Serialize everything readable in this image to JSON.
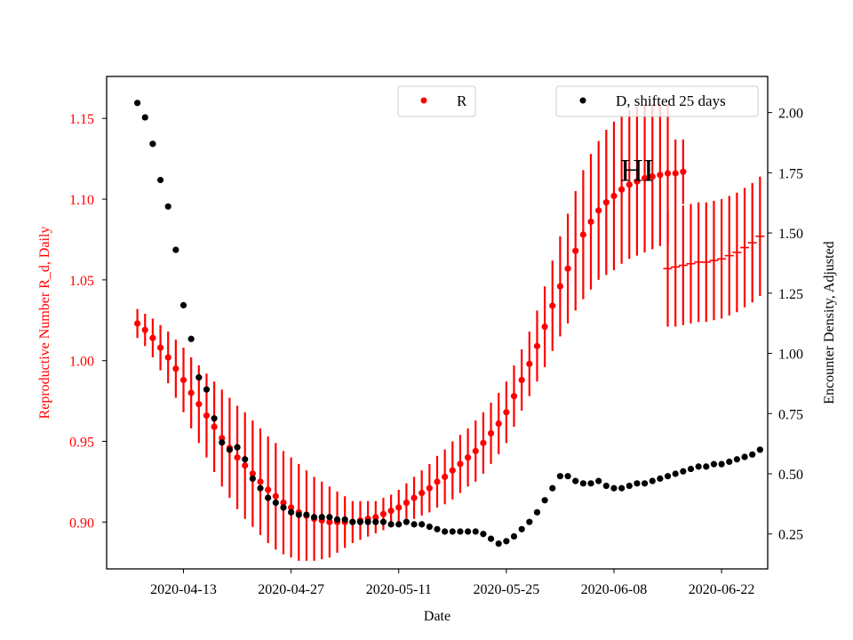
{
  "chart_data": {
    "type": "scatter",
    "xlabel": "Date",
    "ylabel_left": "Reproductive Number R_d, Daily",
    "ylabel_right": "Encounter Density, Adjusted",
    "x_tick_labels": [
      "2020-04-13",
      "2020-04-27",
      "2020-05-11",
      "2020-05-25",
      "2020-06-08",
      "2020-06-22"
    ],
    "x_tick_dates": [
      "2020-04-13",
      "2020-04-27",
      "2020-05-11",
      "2020-05-25",
      "2020-06-08",
      "2020-06-22"
    ],
    "xlim": [
      "2020-04-03",
      "2020-06-28"
    ],
    "ylim_left": [
      0.871,
      1.176
    ],
    "ylim_right": [
      0.105,
      2.15
    ],
    "y_left_ticks": [
      "0.90",
      "0.95",
      "1.00",
      "1.05",
      "1.10",
      "1.15"
    ],
    "y_right_ticks": [
      "0.25",
      "0.50",
      "0.75",
      "1.00",
      "1.25",
      "1.50",
      "1.75",
      "2.00"
    ],
    "annotation": "HI",
    "annotation_x": "2020-06-11",
    "annotation_y": 1.118,
    "colors": {
      "R": "#ff0000",
      "D": "#000000"
    },
    "legend_left": {
      "label": "R",
      "placement": "upper-center"
    },
    "legend_right": {
      "label": "D, shifted 25 days",
      "placement": "upper-right"
    },
    "series_R": {
      "name": "R",
      "start_date": "2020-04-07",
      "values": [
        1.023,
        1.019,
        1.014,
        1.008,
        1.002,
        0.995,
        0.988,
        0.98,
        0.973,
        0.966,
        0.959,
        0.952,
        0.946,
        0.94,
        0.935,
        0.93,
        0.925,
        0.92,
        0.916,
        0.912,
        0.909,
        0.906,
        0.904,
        0.902,
        0.901,
        0.9,
        0.9,
        0.9,
        0.9,
        0.901,
        0.902,
        0.903,
        0.905,
        0.907,
        0.909,
        0.912,
        0.915,
        0.918,
        0.921,
        0.925,
        0.928,
        0.932,
        0.936,
        0.94,
        0.944,
        0.949,
        0.955,
        0.961,
        0.968,
        0.978,
        0.988,
        0.998,
        1.009,
        1.021,
        1.034,
        1.046,
        1.057,
        1.068,
        1.078,
        1.086,
        1.093,
        1.098,
        1.102,
        1.106,
        1.109,
        1.111,
        1.113,
        1.114,
        1.115,
        1.116,
        1.116,
        1.117
      ],
      "errors": [
        0.009,
        0.01,
        0.012,
        0.014,
        0.016,
        0.018,
        0.02,
        0.022,
        0.024,
        0.026,
        0.028,
        0.03,
        0.031,
        0.032,
        0.033,
        0.033,
        0.033,
        0.033,
        0.033,
        0.032,
        0.031,
        0.03,
        0.028,
        0.026,
        0.024,
        0.022,
        0.019,
        0.016,
        0.013,
        0.012,
        0.011,
        0.01,
        0.01,
        0.01,
        0.011,
        0.012,
        0.013,
        0.014,
        0.015,
        0.016,
        0.017,
        0.018,
        0.018,
        0.018,
        0.019,
        0.019,
        0.019,
        0.019,
        0.019,
        0.019,
        0.019,
        0.02,
        0.022,
        0.025,
        0.028,
        0.031,
        0.034,
        0.037,
        0.04,
        0.042,
        0.043,
        0.045,
        0.046,
        0.046,
        0.046,
        0.046,
        0.046,
        0.045,
        0.044,
        0.043,
        0.021,
        0.02
      ]
    },
    "series_R_late": {
      "name": "R",
      "start_date": "2020-06-15",
      "values": [
        1.057,
        1.058,
        1.059,
        1.06,
        1.061,
        1.061,
        1.062,
        1.063,
        1.065,
        1.067,
        1.07,
        1.073,
        1.077
      ],
      "errors": [
        0.036,
        0.037,
        0.037,
        0.037,
        0.037,
        0.037,
        0.037,
        0.037,
        0.037,
        0.037,
        0.037,
        0.037,
        0.037
      ]
    },
    "series_D": {
      "name": "D, shifted 25 days",
      "start_date": "2020-04-07",
      "values": [
        2.04,
        1.98,
        1.87,
        1.72,
        1.61,
        1.43,
        1.2,
        1.06,
        0.9,
        0.85,
        0.73,
        0.63,
        0.6,
        0.61,
        0.56,
        0.48,
        0.44,
        0.4,
        0.38,
        0.36,
        0.34,
        0.33,
        0.33,
        0.32,
        0.32,
        0.32,
        0.31,
        0.31,
        0.3,
        0.3,
        0.3,
        0.3,
        0.3,
        0.29,
        0.29,
        0.3,
        0.29,
        0.29,
        0.28,
        0.27,
        0.26,
        0.26,
        0.26,
        0.26,
        0.26,
        0.25,
        0.23,
        0.21,
        0.22,
        0.24,
        0.27,
        0.3,
        0.34,
        0.39,
        0.44,
        0.49,
        0.49,
        0.47,
        0.46,
        0.46,
        0.47,
        0.45,
        0.44,
        0.44,
        0.45,
        0.46,
        0.46,
        0.47,
        0.48,
        0.49,
        0.5,
        0.51,
        0.52,
        0.53,
        0.53,
        0.54,
        0.54,
        0.55,
        0.56,
        0.57,
        0.58,
        0.6
      ]
    }
  }
}
